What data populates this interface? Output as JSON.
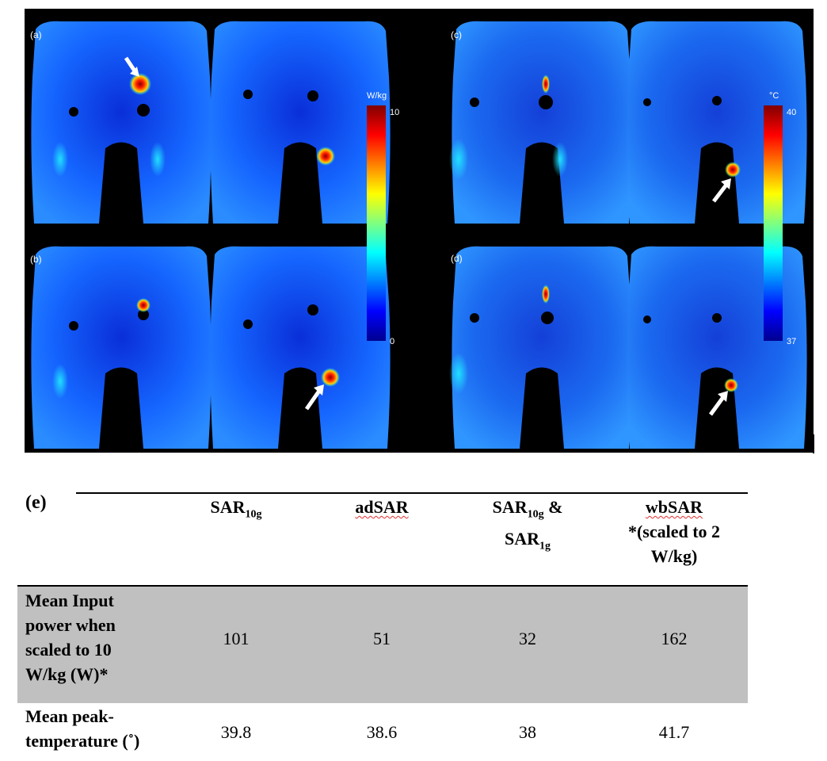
{
  "figure": {
    "panels": [
      {
        "label": "(a)"
      },
      {
        "label": "(b)"
      },
      {
        "label": "(c)"
      },
      {
        "label": "(d)"
      }
    ],
    "sar_colorbar": {
      "unit": "W/kg",
      "max": "10",
      "min": "0"
    },
    "temp_colorbar": {
      "unit": "°C",
      "max": "40",
      "min": "37"
    }
  },
  "table": {
    "label": "(e)",
    "columns": [
      {
        "main": "SAR",
        "sub": "10g"
      },
      {
        "main": "adSAR"
      },
      {
        "line1_main": "SAR",
        "line1_sub": "10g",
        "line1_tail": " &",
        "line2_main": "SAR",
        "line2_sub": "1g"
      },
      {
        "line1": "wbSAR",
        "line2": "*(scaled to 2",
        "line3": "W/kg)"
      }
    ],
    "rows": [
      {
        "label_lines": [
          "Mean Input",
          "power when",
          "scaled to 10",
          "W/kg (W)*"
        ],
        "values": [
          "101",
          "51",
          "32",
          "162"
        ]
      },
      {
        "label_lines": [
          "Mean peak-",
          "temperature (˚)"
        ],
        "values": [
          "39.8",
          "38.6",
          "38",
          "41.7"
        ]
      }
    ]
  }
}
